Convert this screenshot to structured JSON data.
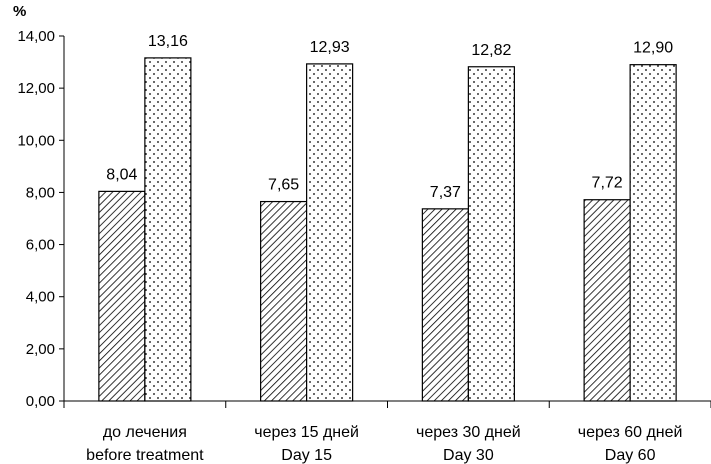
{
  "chart_data": {
    "type": "bar",
    "y_unit": "%",
    "ylim": [
      0,
      14
    ],
    "y_ticks": [
      "0,00",
      "2,00",
      "4,00",
      "6,00",
      "8,00",
      "10,00",
      "12,00",
      "14,00"
    ],
    "y_tick_values": [
      0,
      2,
      4,
      6,
      8,
      10,
      12,
      14
    ],
    "grid": false,
    "legend": "none",
    "categories": [
      [
        "до лечения",
        "before treatment"
      ],
      [
        "через 15 дней",
        "Day 15"
      ],
      [
        "через 30 дней",
        "Day 30"
      ],
      [
        "через 60 дней",
        "Day 60"
      ]
    ],
    "series": [
      {
        "pattern": "diagonal-hatch",
        "values": [
          8.04,
          7.65,
          7.37,
          7.72
        ],
        "labels": [
          "8,04",
          "7,65",
          "7,37",
          "7,72"
        ]
      },
      {
        "pattern": "dots",
        "values": [
          13.16,
          12.93,
          12.82,
          12.9
        ],
        "labels": [
          "13,16",
          "12,93",
          "12,82",
          "12,90"
        ]
      }
    ]
  }
}
